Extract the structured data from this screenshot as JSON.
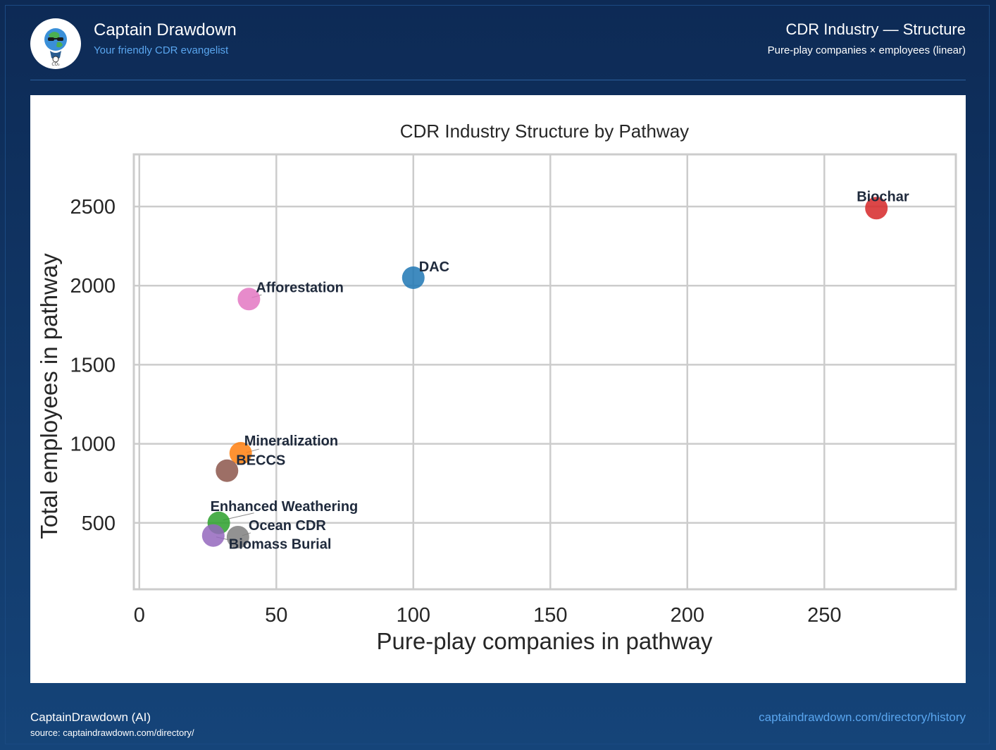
{
  "header": {
    "brand_name": "Captain Drawdown",
    "tagline": "Your friendly CDR evangelist",
    "title": "CDR Industry — Structure",
    "subtitle": "Pure-play companies × employees (linear)"
  },
  "footer": {
    "author": "CaptainDrawdown (AI)",
    "source": "source: captaindrawdown.com/directory/",
    "link": "captaindrawdown.com/directory/history"
  },
  "chart_data": {
    "type": "scatter",
    "title": "CDR Industry Structure by Pathway",
    "xlabel": "Pure-play companies in pathway",
    "ylabel": "Total employees in pathway",
    "xlim": [
      -2,
      298
    ],
    "ylim": [
      80,
      2830
    ],
    "xticks": [
      0,
      50,
      100,
      150,
      200,
      250
    ],
    "yticks": [
      500,
      1000,
      1500,
      2000,
      2500
    ],
    "grid": true,
    "points": [
      {
        "label": "Biochar",
        "x": 269,
        "y": 2490,
        "color": "#d62728"
      },
      {
        "label": "DAC",
        "x": 100,
        "y": 2050,
        "color": "#1f77b4"
      },
      {
        "label": "Afforestation",
        "x": 40,
        "y": 1915,
        "color": "#e377c2"
      },
      {
        "label": "Mineralization",
        "x": 37,
        "y": 940,
        "color": "#ff7f0e"
      },
      {
        "label": "BECCS",
        "x": 32,
        "y": 830,
        "color": "#8c564b"
      },
      {
        "label": "Enhanced Weathering",
        "x": 29,
        "y": 500,
        "color": "#2ca02c"
      },
      {
        "label": "Ocean CDR",
        "x": 36,
        "y": 410,
        "color": "#7f7f7f"
      },
      {
        "label": "Biomass Burial",
        "x": 27,
        "y": 420,
        "color": "#9467bd"
      }
    ]
  }
}
